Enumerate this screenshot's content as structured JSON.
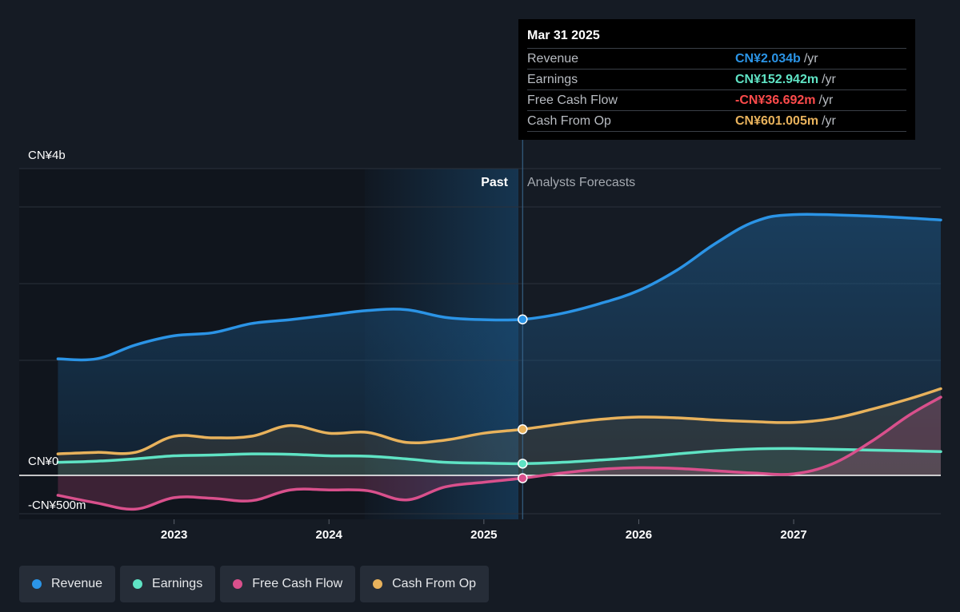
{
  "chart_data": {
    "type": "line",
    "y_axis_labels": [
      "CN¥4b",
      "CN¥0",
      "-CN¥500m"
    ],
    "x_ticks": [
      "2023",
      "2024",
      "2025",
      "2026",
      "2027"
    ],
    "ylim": [
      -500000000,
      4000000000
    ],
    "past_label": "Past",
    "forecast_label": "Analysts Forecasts",
    "divider_x": 2025.25,
    "series": [
      {
        "name": "Revenue",
        "color": "#2b94e6",
        "x": [
          2022.25,
          2022.5,
          2022.75,
          2023.0,
          2023.25,
          2023.5,
          2023.75,
          2024.0,
          2024.25,
          2024.5,
          2024.75,
          2025.0,
          2025.25,
          2025.5,
          2025.75,
          2026.0,
          2026.25,
          2026.5,
          2026.75,
          2027.0,
          2027.5,
          2027.95
        ],
        "values": [
          1520000000,
          1520000000,
          1700000000,
          1820000000,
          1860000000,
          1980000000,
          2030000000,
          2090000000,
          2150000000,
          2160000000,
          2060000000,
          2030000000,
          2034000000,
          2110000000,
          2240000000,
          2410000000,
          2680000000,
          3030000000,
          3310000000,
          3400000000,
          3380000000,
          3330000000
        ]
      },
      {
        "name": "Earnings",
        "color": "#5fe3c4",
        "x": [
          2022.25,
          2022.5,
          2022.75,
          2023.0,
          2023.25,
          2023.5,
          2023.75,
          2024.0,
          2024.25,
          2024.5,
          2024.75,
          2025.0,
          2025.25,
          2025.5,
          2025.75,
          2026.0,
          2026.25,
          2026.5,
          2026.75,
          2027.0,
          2027.5,
          2027.95
        ],
        "values": [
          170000000,
          185000000,
          215000000,
          255000000,
          265000000,
          280000000,
          275000000,
          255000000,
          250000000,
          215000000,
          170000000,
          160000000,
          152942000,
          170000000,
          200000000,
          235000000,
          280000000,
          320000000,
          345000000,
          350000000,
          330000000,
          310000000
        ]
      },
      {
        "name": "Free Cash Flow",
        "color": "#d9508c",
        "x": [
          2022.25,
          2022.5,
          2022.75,
          2023.0,
          2023.25,
          2023.5,
          2023.75,
          2024.0,
          2024.25,
          2024.5,
          2024.75,
          2025.0,
          2025.25,
          2025.5,
          2025.75,
          2026.0,
          2026.25,
          2026.5,
          2026.75,
          2027.0,
          2027.25,
          2027.5,
          2027.75,
          2027.95
        ],
        "values": [
          -260000000,
          -360000000,
          -440000000,
          -290000000,
          -300000000,
          -330000000,
          -190000000,
          -190000000,
          -200000000,
          -320000000,
          -150000000,
          -90000000,
          -36692000,
          30000000,
          80000000,
          100000000,
          90000000,
          60000000,
          30000000,
          20000000,
          150000000,
          440000000,
          790000000,
          1020000000
        ]
      },
      {
        "name": "Cash From Op",
        "color": "#e8b25c",
        "x": [
          2022.25,
          2022.5,
          2022.75,
          2023.0,
          2023.25,
          2023.5,
          2023.75,
          2024.0,
          2024.25,
          2024.5,
          2024.75,
          2025.0,
          2025.25,
          2025.5,
          2025.75,
          2026.0,
          2026.25,
          2026.5,
          2026.75,
          2027.0,
          2027.25,
          2027.5,
          2027.75,
          2027.95
        ],
        "values": [
          280000000,
          300000000,
          300000000,
          510000000,
          490000000,
          510000000,
          650000000,
          550000000,
          560000000,
          430000000,
          460000000,
          550000000,
          601005000,
          670000000,
          730000000,
          760000000,
          750000000,
          720000000,
          700000000,
          690000000,
          740000000,
          860000000,
          1000000000,
          1130000000
        ]
      }
    ],
    "highlight": {
      "x": 2025.25,
      "series": [
        "Revenue",
        "Earnings",
        "Free Cash Flow",
        "Cash From Op"
      ]
    }
  },
  "tooltip": {
    "date": "Mar 31 2025",
    "unit": "/yr",
    "rows": [
      {
        "label": "Revenue",
        "value": "CN¥2.034b",
        "color": "#2b94e6"
      },
      {
        "label": "Earnings",
        "value": "CN¥152.942m",
        "color": "#5fe3c4"
      },
      {
        "label": "Free Cash Flow",
        "value": "-CN¥36.692m",
        "color": "#ff4b4b"
      },
      {
        "label": "Cash From Op",
        "value": "CN¥601.005m",
        "color": "#e8b25c"
      }
    ]
  },
  "legend": [
    {
      "label": "Revenue",
      "color": "#2b94e6"
    },
    {
      "label": "Earnings",
      "color": "#5fe3c4"
    },
    {
      "label": "Free Cash Flow",
      "color": "#d9508c"
    },
    {
      "label": "Cash From Op",
      "color": "#e8b25c"
    }
  ]
}
